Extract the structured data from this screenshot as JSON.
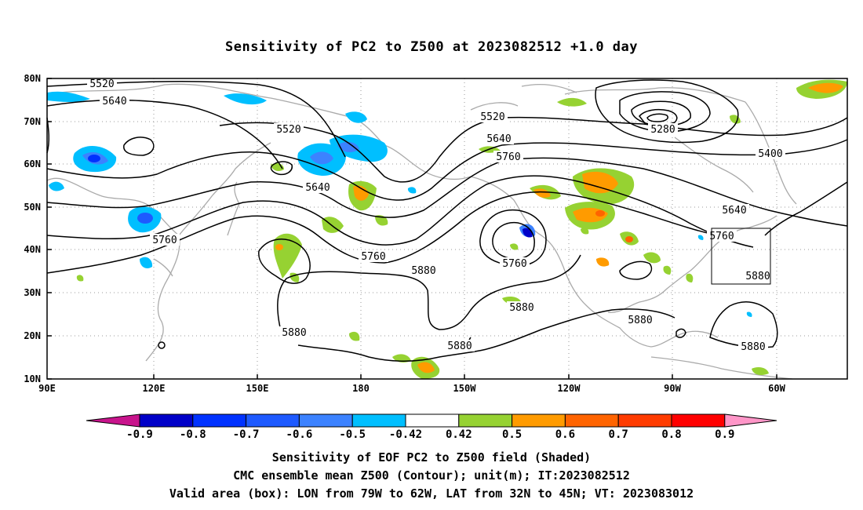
{
  "title": "Sensitivity of PC2 to Z500 at 2023082512 +1.0 day",
  "map": {
    "lat_labels": [
      "80N",
      "70N",
      "60N",
      "50N",
      "40N",
      "30N",
      "20N",
      "10N"
    ],
    "lon_labels": [
      "90E",
      "120E",
      "150E",
      "180",
      "150W",
      "120W",
      "90W",
      "60W"
    ],
    "contour_labels": [
      {
        "text": "5520"
      },
      {
        "text": "5640"
      },
      {
        "text": "5520"
      },
      {
        "text": "5640"
      },
      {
        "text": "5760"
      },
      {
        "text": "5520"
      },
      {
        "text": "5640"
      },
      {
        "text": "5760"
      },
      {
        "text": "5760"
      },
      {
        "text": "5880"
      },
      {
        "text": "5760"
      },
      {
        "text": "5880"
      },
      {
        "text": "5880"
      },
      {
        "text": "5880"
      },
      {
        "text": "5280"
      },
      {
        "text": "5400"
      },
      {
        "text": "5640"
      },
      {
        "text": "5760"
      },
      {
        "text": "5880"
      },
      {
        "text": "5880"
      },
      {
        "text": "5880"
      }
    ]
  },
  "colorbar": {
    "ticks": [
      "-0.9",
      "-0.8",
      "-0.7",
      "-0.6",
      "-0.5",
      "-0.42",
      "0.42",
      "0.5",
      "0.6",
      "0.7",
      "0.8",
      "0.9"
    ],
    "colors": [
      "#c8148c",
      "#0000c8",
      "#0032ff",
      "#1e5aff",
      "#3c82ff",
      "#00bfff",
      "#ffffff",
      "#96d232",
      "#ff9b00",
      "#ff6400",
      "#ff3c00",
      "#ff0000",
      "#ff96c8"
    ]
  },
  "captions": [
    "Sensitivity of EOF PC2 to Z500 field (Shaded)",
    "CMC ensemble mean Z500 (Contour); unit(m); IT:2023082512",
    "Valid area (box): LON from 79W to 62W, LAT from 32N to 45N; VT: 2023083012"
  ]
}
